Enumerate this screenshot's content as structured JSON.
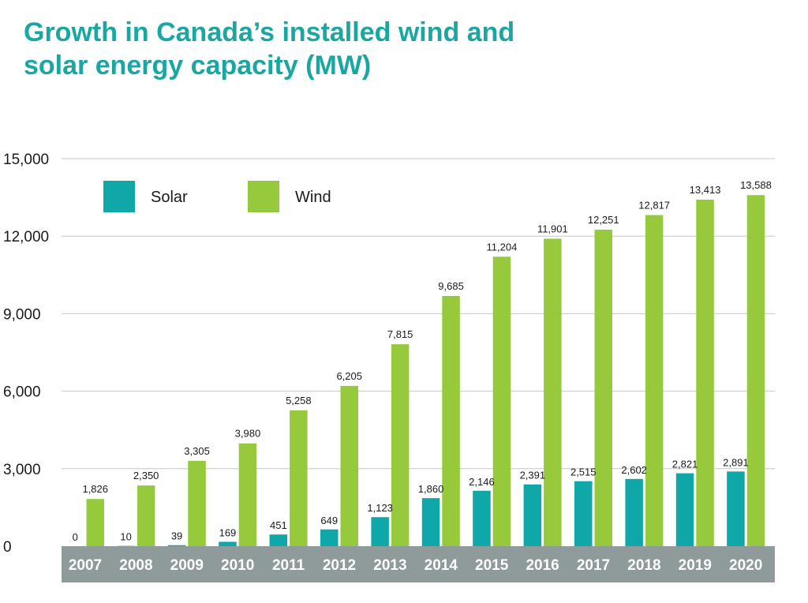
{
  "header": {
    "title_line1": "Growth in Canada’s installed wind and",
    "title_line2": "solar energy capacity (MW)"
  },
  "colors": {
    "solar": "#0fa7a8",
    "wind": "#97c93c",
    "title": "#1aa7a1",
    "axis_band": "#8f9a9a",
    "grid": "#c7c7c7"
  },
  "chart_data": {
    "type": "bar",
    "title": "Growth in Canada’s installed wind and solar energy capacity (MW)",
    "xlabel": "",
    "ylabel": "",
    "ylim": [
      0,
      15000
    ],
    "yticks": [
      0,
      3000,
      6000,
      9000,
      12000,
      15000
    ],
    "ytick_labels": [
      "0",
      "3,000",
      "6,000",
      "9,000",
      "12,000",
      "15,000"
    ],
    "grid": true,
    "legend_position": "top-left",
    "categories": [
      "2007",
      "2008",
      "2009",
      "2010",
      "2011",
      "2012",
      "2013",
      "2014",
      "2015",
      "2016",
      "2017",
      "2018",
      "2019",
      "2020"
    ],
    "series": [
      {
        "name": "Solar",
        "values": [
          0,
          10,
          39,
          169,
          451,
          649,
          1123,
          1860,
          2146,
          2391,
          2515,
          2602,
          2821,
          2891
        ],
        "labels": [
          "0",
          "10",
          "39",
          "169",
          "451",
          "649",
          "1,123",
          "1,860",
          "2,146",
          "2,391",
          "2,515",
          "2,602",
          "2,821",
          "2,891"
        ]
      },
      {
        "name": "Wind",
        "values": [
          1826,
          2350,
          3305,
          3980,
          5258,
          6205,
          7815,
          9685,
          11204,
          11901,
          12251,
          12817,
          13413,
          13588
        ],
        "labels": [
          "1,826",
          "2,350",
          "3,305",
          "3,980",
          "5,258",
          "6,205",
          "7,815",
          "9,685",
          "11,204",
          "11,901",
          "12,251",
          "12,817",
          "13,413",
          "13,588"
        ]
      }
    ]
  }
}
